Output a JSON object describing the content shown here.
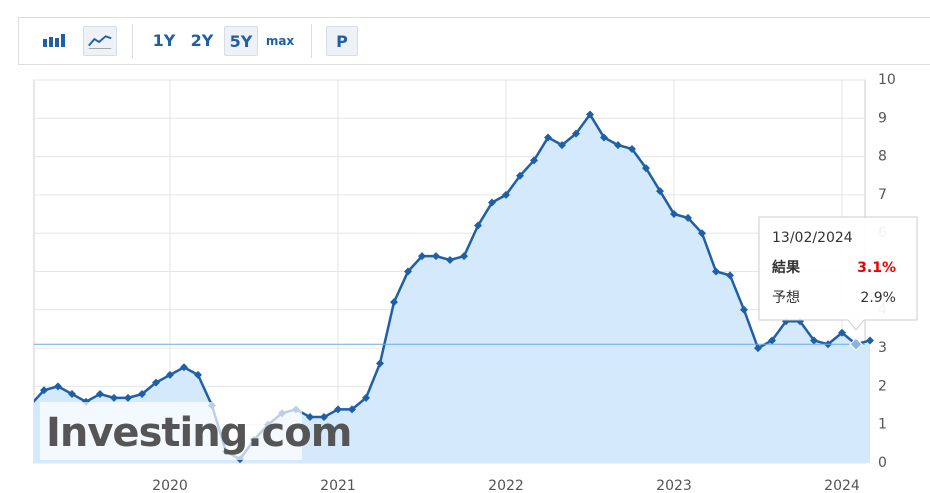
{
  "toolbar": {
    "ranges": [
      "1Y",
      "2Y",
      "5Y",
      "max"
    ],
    "p_button": "P"
  },
  "chart_data": {
    "type": "line",
    "categories": [
      null,
      null,
      null,
      null,
      null,
      null,
      null,
      null,
      null,
      null,
      "2020",
      null,
      null,
      null,
      null,
      null,
      null,
      null,
      null,
      null,
      null,
      null,
      "2021",
      null,
      null,
      null,
      null,
      null,
      null,
      null,
      null,
      null,
      null,
      null,
      "2022",
      null,
      null,
      null,
      null,
      null,
      null,
      null,
      null,
      null,
      null,
      null,
      "2023",
      null,
      null,
      null,
      null,
      null,
      null,
      null,
      null,
      null,
      null,
      null,
      "2024",
      null,
      null
    ],
    "values": [
      1.5,
      1.9,
      2.0,
      1.8,
      1.6,
      1.8,
      1.7,
      1.7,
      1.8,
      2.1,
      2.3,
      2.5,
      2.3,
      1.5,
      0.3,
      0.1,
      0.6,
      1.0,
      1.3,
      1.4,
      1.2,
      1.2,
      1.4,
      1.4,
      1.7,
      2.6,
      4.2,
      5.0,
      5.4,
      5.4,
      5.3,
      5.4,
      6.2,
      6.8,
      7.0,
      7.5,
      7.9,
      8.5,
      8.3,
      8.6,
      9.1,
      8.5,
      8.3,
      8.2,
      7.7,
      7.1,
      6.5,
      6.4,
      6.0,
      5.0,
      4.9,
      4.0,
      3.0,
      3.2,
      3.7,
      3.7,
      3.2,
      3.1,
      3.4,
      3.1,
      3.2
    ],
    "color": "#1f5fa6",
    "area_color": "#d5e9fc",
    "ylim": [
      0,
      10
    ],
    "yticks": [
      0,
      1,
      2,
      3,
      4,
      5,
      6,
      7,
      8,
      9,
      10
    ],
    "grid": true,
    "watermark": "Investing.com",
    "tooltip": {
      "date": "13/02/2024",
      "rows": [
        {
          "label": "結果",
          "value": "3.1%"
        },
        {
          "label": "予想",
          "value": "2.9%"
        }
      ]
    }
  }
}
